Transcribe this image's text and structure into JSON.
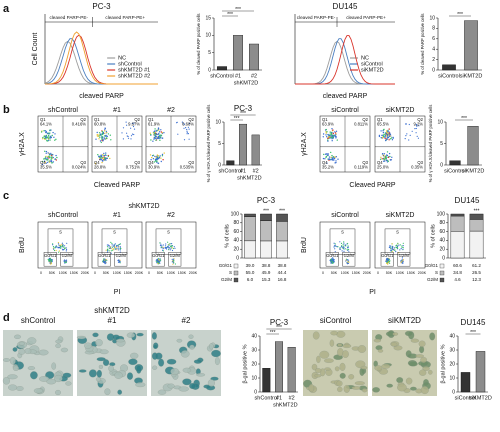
{
  "panel_labels": [
    "a",
    "b",
    "c",
    "d"
  ],
  "histograms": [
    {
      "title": "PC-3",
      "ylabel": "Cell Count",
      "xlabel": "cleaved PARP",
      "gate_labels": [
        "cleaved PARP-PE-",
        "cleaved PARP-PE+"
      ],
      "legend": [
        {
          "name": "NC",
          "color": "#9e9e9e"
        },
        {
          "name": "shControl",
          "color": "#4a7fc1"
        },
        {
          "name": "shKMT2D #1",
          "color": "#d9342b"
        },
        {
          "name": "shKMT2D #2",
          "color": "#f0a030"
        }
      ]
    },
    {
      "title": "DU145",
      "xlabel": "cleaved PARP",
      "gate_labels": [
        "cleaved PARP-PE-",
        "cleaved PARP-PE+"
      ],
      "legend": [
        {
          "name": "NC",
          "color": "#9e9e9e"
        },
        {
          "name": "siControl",
          "color": "#4a7fc1"
        },
        {
          "name": "siKMT2D",
          "color": "#d9342b"
        }
      ]
    }
  ],
  "dot_plots": [
    {
      "ylabel": "γH2A.X",
      "xlabel": "Cleaved PARP",
      "plots": [
        {
          "title": "shControl",
          "quadrants": [
            {
              "name": "Q1",
              "value": "64.1%"
            },
            {
              "name": "Q2",
              "value": "0.416%"
            },
            {
              "name": "Q3",
              "value": "0.024%"
            },
            {
              "name": "Q4",
              "value": "35.5%"
            }
          ]
        },
        {
          "title": "#1",
          "quadrants": [
            {
              "name": "Q1",
              "value": "60.8%"
            },
            {
              "name": "Q2",
              "value": "9.67%"
            },
            {
              "name": "Q3",
              "value": "0.751%"
            },
            {
              "name": "Q4",
              "value": "28.8%"
            }
          ]
        },
        {
          "title": "#2",
          "quadrants": [
            {
              "name": "Q1",
              "value": "61.9%"
            },
            {
              "name": "Q2",
              "value": "6.68%"
            },
            {
              "name": "Q3",
              "value": "0.535%"
            },
            {
              "name": "Q4",
              "value": "30.9%"
            }
          ]
        }
      ]
    },
    {
      "ylabel": "γH2A.X",
      "xlabel": "Cleaved PARP",
      "plots": [
        {
          "title": "siControl",
          "quadrants": [
            {
              "name": "Q1",
              "value": "63.9%"
            },
            {
              "name": "Q2",
              "value": "0.811%"
            },
            {
              "name": "Q3",
              "value": "0.119%"
            },
            {
              "name": "Q4",
              "value": "35.2%"
            }
          ]
        },
        {
          "title": "siKMT2D",
          "quadrants": [
            {
              "name": "Q1",
              "value": "65.5%"
            },
            {
              "name": "Q2",
              "value": "9.2%"
            },
            {
              "name": "Q3",
              "value": "0.35%"
            },
            {
              "name": "Q4",
              "value": "25.0%"
            }
          ]
        }
      ]
    }
  ],
  "cell_cycle": [
    {
      "ylabel": "BrdU",
      "xlabel": "PI",
      "group_label": "shKMT2D",
      "gates": [
        "S",
        "G0/G1",
        "G2/M"
      ],
      "xtick_labels": [
        "0",
        "50K",
        "100K",
        "150K",
        "200K"
      ],
      "plots": [
        "shControl",
        "#1",
        "#2"
      ]
    },
    {
      "ylabel": "BrdU",
      "xlabel": "PI",
      "gates": [
        "S",
        "G0/G1",
        "G2/M"
      ],
      "xtick_labels": [
        "0",
        "50K",
        "100K",
        "150K",
        "200K"
      ],
      "plots": [
        "siControl",
        "siKMT2D"
      ]
    }
  ],
  "sa_bgal": [
    {
      "group_label": "shKMT2D",
      "images": [
        "shControl",
        "#1",
        "#2"
      ]
    },
    {
      "images": [
        "siControl",
        "siKMT2D"
      ]
    }
  ],
  "chart_data": [
    {
      "type": "bar",
      "ylabel": "% of cleaved PARP positive cells",
      "categories": [
        "shControl",
        "#1",
        "#2"
      ],
      "group_label": "shKMT2D",
      "values": [
        1,
        10,
        7.5
      ],
      "colors": [
        "#333333",
        "#8c8c8c",
        "#8c8c8c"
      ],
      "ylim": [
        0,
        15
      ],
      "yticks": [
        0,
        5,
        10,
        15
      ],
      "annotations": [
        "***",
        "***"
      ]
    },
    {
      "type": "bar",
      "ylabel": "% of cleaved PARP positive cells",
      "categories": [
        "siControl",
        "siKMT2D"
      ],
      "values": [
        1,
        9.5
      ],
      "colors": [
        "#333333",
        "#8c8c8c"
      ],
      "ylim": [
        0,
        10
      ],
      "yticks": [
        0,
        2,
        4,
        6,
        8,
        10
      ],
      "annotations": [
        "***"
      ]
    },
    {
      "type": "bar",
      "title": "PC-3",
      "ylabel": "% of γ H2A.X/cleaved PARP positive cells",
      "categories": [
        "shControl",
        "#1",
        "#2"
      ],
      "group_label": "shKMT2D",
      "values": [
        1,
        9.5,
        7
      ],
      "colors": [
        "#333333",
        "#8c8c8c",
        "#8c8c8c"
      ],
      "ylim": [
        0,
        10
      ],
      "yticks": [
        0,
        5,
        10
      ],
      "annotations": [
        "***",
        "***"
      ]
    },
    {
      "type": "bar",
      "ylabel": "% of γ H2A.X/cleaved PARP positive cells",
      "categories": [
        "siControl",
        "siKMT2D"
      ],
      "values": [
        1,
        9
      ],
      "colors": [
        "#333333",
        "#8c8c8c"
      ],
      "ylim": [
        0,
        10
      ],
      "yticks": [
        0,
        5,
        10
      ],
      "annotations": [
        "***"
      ]
    },
    {
      "type": "stacked_bar",
      "title": "PC-3",
      "ylabel": "% of cells",
      "ylim": [
        0,
        100
      ],
      "yticks": [
        0,
        20,
        40,
        60,
        80,
        100
      ],
      "annotations": [
        "***",
        "***"
      ],
      "series": [
        {
          "name": "G0/G1",
          "color": "#f2f2f2",
          "values": [
            39,
            38.8,
            38.8
          ],
          "value_labels": [
            "39.0",
            "38.8",
            "38.8"
          ]
        },
        {
          "name": "S",
          "color": "#bdbdbd",
          "values": [
            55,
            45.9,
            44.4
          ],
          "value_labels": [
            "55.0",
            "45.9",
            "44.4"
          ]
        },
        {
          "name": "G2/M",
          "color": "#555555",
          "values": [
            6,
            15.3,
            16.8
          ],
          "value_labels": [
            "6.0",
            "15.3",
            "16.8"
          ]
        }
      ]
    },
    {
      "type": "stacked_bar",
      "title": "DU145",
      "ylabel": "% of cells",
      "ylim": [
        0,
        100
      ],
      "yticks": [
        0,
        20,
        40,
        60,
        80,
        100
      ],
      "annotations": [
        "***"
      ],
      "series": [
        {
          "name": "G0/G1",
          "color": "#f2f2f2",
          "values": [
            60.6,
            61.2
          ],
          "value_labels": [
            "60.6",
            "61.2"
          ]
        },
        {
          "name": "S",
          "color": "#bdbdbd",
          "values": [
            34.8,
            26.5
          ],
          "value_labels": [
            "34.8",
            "26.5"
          ]
        },
        {
          "name": "G2/M",
          "color": "#555555",
          "values": [
            4.6,
            12.3
          ],
          "value_labels": [
            "4.6",
            "12.3"
          ]
        }
      ]
    },
    {
      "type": "bar",
      "title": "PC-3",
      "ylabel": "β-gal positive %",
      "categories": [
        "shControl",
        "#1",
        "#2"
      ],
      "group_label": "shKMT2D",
      "values": [
        17,
        36,
        32
      ],
      "colors": [
        "#333333",
        "#8c8c8c",
        "#8c8c8c"
      ],
      "ylim": [
        0,
        40
      ],
      "yticks": [
        0,
        10,
        20,
        30,
        40
      ],
      "annotations": [
        "***",
        "***"
      ]
    },
    {
      "type": "bar",
      "title": "DU145",
      "ylabel": "β-gal positive %",
      "categories": [
        "siControl",
        "siKMT2D"
      ],
      "values": [
        14,
        29
      ],
      "colors": [
        "#333333",
        "#8c8c8c"
      ],
      "ylim": [
        0,
        40
      ],
      "yticks": [
        0,
        10,
        20,
        30,
        40
      ],
      "annotations": [
        "***"
      ]
    }
  ]
}
